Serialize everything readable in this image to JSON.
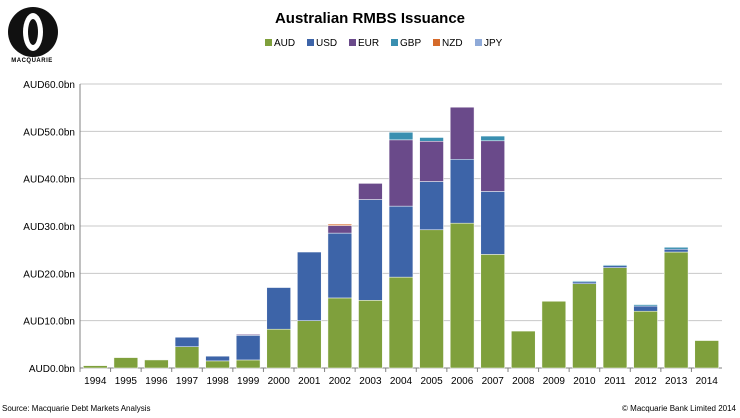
{
  "logo_text": "MACQUARIE",
  "footer": {
    "source": "Source: Macquarie Debt Markets Analysis",
    "copyright": "© Macquarie Bank Limited 2014"
  },
  "colors": {
    "AUD": "#7fa03c",
    "USD": "#3d64a8",
    "EUR": "#6a4a8a",
    "GBP": "#3a8fb0",
    "NZD": "#d56a2a",
    "JPY": "#8faad8"
  },
  "chart_data": {
    "type": "bar",
    "stacked": true,
    "title": "Australian RMBS Issuance",
    "xlabel": "",
    "ylabel": "",
    "categories": [
      "1994",
      "1995",
      "1996",
      "1997",
      "1998",
      "1999",
      "2000",
      "2001",
      "2002",
      "2003",
      "2004",
      "2005",
      "2006",
      "2007",
      "2008",
      "2009",
      "2010",
      "2011",
      "2012",
      "2013",
      "2014"
    ],
    "ylim": [
      0,
      60
    ],
    "yticks": [
      0,
      10,
      20,
      30,
      40,
      50,
      60
    ],
    "ytick_labels": [
      "AUD0.0bn",
      "AUD10.0bn",
      "AUD20.0bn",
      "AUD30.0bn",
      "AUD40.0bn",
      "AUD50.0bn",
      "AUD60.0bn"
    ],
    "grid": true,
    "legend_position": "top-center",
    "series": [
      {
        "name": "AUD",
        "values": [
          0.5,
          2.2,
          1.7,
          4.5,
          1.5,
          1.7,
          8.2,
          10.0,
          14.8,
          14.3,
          19.2,
          29.2,
          30.6,
          24.0,
          7.8,
          14.1,
          17.8,
          21.2,
          12.0,
          24.5,
          5.8
        ]
      },
      {
        "name": "USD",
        "values": [
          0,
          0,
          0,
          2.0,
          1.0,
          5.2,
          8.8,
          14.5,
          13.7,
          21.3,
          15.0,
          10.2,
          13.5,
          13.3,
          0,
          0,
          0.4,
          0.4,
          1.1,
          0.6,
          0
        ]
      },
      {
        "name": "EUR",
        "values": [
          0,
          0,
          0,
          0,
          0,
          0.2,
          0,
          0,
          1.6,
          3.4,
          14.0,
          8.5,
          11.0,
          10.7,
          0,
          0,
          0,
          0,
          0,
          0,
          0
        ]
      },
      {
        "name": "GBP",
        "values": [
          0,
          0,
          0,
          0,
          0,
          0,
          0,
          0,
          0,
          0,
          1.6,
          0.8,
          0,
          1.0,
          0,
          0,
          0.2,
          0.2,
          0.3,
          0.4,
          0
        ]
      },
      {
        "name": "NZD",
        "values": [
          0,
          0,
          0,
          0,
          0,
          0,
          0,
          0,
          0.3,
          0,
          0,
          0,
          0,
          0,
          0,
          0,
          0,
          0,
          0,
          0,
          0
        ]
      },
      {
        "name": "JPY",
        "values": [
          0,
          0,
          0,
          0,
          0,
          0,
          0,
          0,
          0,
          0,
          0,
          0,
          0,
          0,
          0,
          0,
          0,
          0,
          0,
          0,
          0
        ]
      }
    ]
  }
}
